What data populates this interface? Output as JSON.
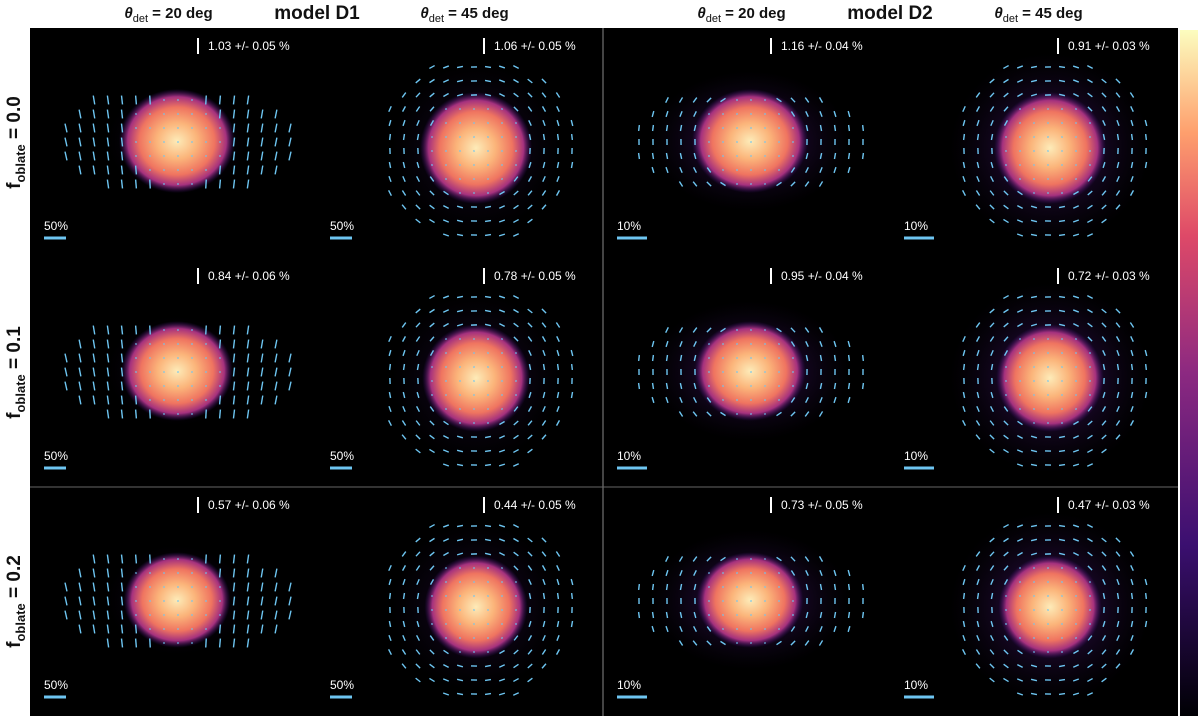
{
  "columns": [
    {
      "symbol": "θ",
      "subscript": "det",
      "rest": " = 20 deg"
    },
    {
      "symbol": "θ",
      "subscript": "det",
      "rest": " = 45 deg"
    },
    {
      "symbol": "θ",
      "subscript": "det",
      "rest": " = 20 deg"
    },
    {
      "symbol": "θ",
      "subscript": "det",
      "rest": " = 45 deg"
    }
  ],
  "models": [
    {
      "title": "model D1"
    },
    {
      "title": "model D2"
    }
  ],
  "rows": [
    {
      "symbol": "f",
      "subscript": "oblate",
      "rest": " = 0.0",
      "panels": [
        {
          "polarization": "1.03 +/- 0.05 %",
          "scale": "50%"
        },
        {
          "polarization": "1.06 +/- 0.05 %",
          "scale": "50%"
        },
        {
          "polarization": "1.16 +/- 0.04 %",
          "scale": "10%"
        },
        {
          "polarization": "0.91 +/- 0.03 %",
          "scale": "10%"
        }
      ]
    },
    {
      "symbol": "f",
      "subscript": "oblate",
      "rest": " = 0.1",
      "panels": [
        {
          "polarization": "0.84 +/- 0.06 %",
          "scale": "50%"
        },
        {
          "polarization": "0.78 +/- 0.05 %",
          "scale": "50%"
        },
        {
          "polarization": "0.95 +/- 0.04 %",
          "scale": "10%"
        },
        {
          "polarization": "0.72 +/- 0.03 %",
          "scale": "10%"
        }
      ]
    },
    {
      "symbol": "f",
      "subscript": "oblate",
      "rest": " = 0.2",
      "panels": [
        {
          "polarization": "0.57 +/- 0.06 %",
          "scale": "50%"
        },
        {
          "polarization": "0.44 +/- 0.05 %",
          "scale": "50%"
        },
        {
          "polarization": "0.73 +/- 0.05 %",
          "scale": "10%"
        },
        {
          "polarization": "0.47 +/- 0.03 %",
          "scale": "10%"
        }
      ]
    }
  ]
}
